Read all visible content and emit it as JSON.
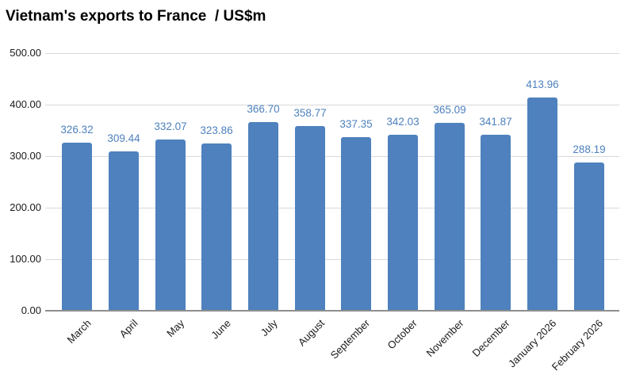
{
  "title": "Vietnam's exports to France  / US$m",
  "chart_data": {
    "type": "bar",
    "title": "Vietnam's exports to France  / US$m",
    "categories": [
      "March",
      "April",
      "May",
      "June",
      "July",
      "August",
      "September",
      "October",
      "November",
      "December",
      "January 2026",
      "February 2026"
    ],
    "values": [
      326.32,
      309.44,
      332.07,
      323.86,
      366.7,
      358.77,
      337.35,
      342.03,
      365.09,
      341.87,
      413.96,
      288.19
    ],
    "value_labels": [
      "326.32",
      "309.44",
      "332.07",
      "323.86",
      "366.70",
      "358.77",
      "337.35",
      "342.03",
      "365.09",
      "341.87",
      "413.96",
      "288.19"
    ],
    "xlabel": "",
    "ylabel": "",
    "ylim": [
      0,
      500
    ],
    "ytick_step": 100,
    "ytick_labels": [
      "0.00",
      "100.00",
      "200.00",
      "300.00",
      "400.00",
      "500.00"
    ],
    "grid": true,
    "legend": false,
    "bar_color": "#4e81bd",
    "value_label_color": "#4e81bd",
    "gridline_color": "#d9d9d9",
    "axis_line_color": "#8e8e8e",
    "tick_label_color": "#1a1a1a"
  }
}
